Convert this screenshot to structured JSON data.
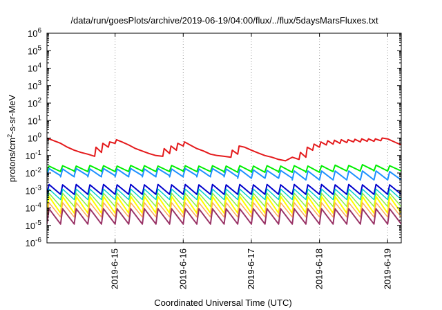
{
  "chart_data": {
    "type": "line",
    "title": "/data/run/goesPlots/archive/2019-06-19/04:00/flux/../flux/5daysMarsFluxes.txt",
    "xlabel": "Coordinated Universal Time (UTC)",
    "ylabel_parts": {
      "base": "protons/cm",
      "sup": "2",
      "rest": "-s-sr-MeV"
    },
    "xlim": [
      14.0,
      19.2
    ],
    "x_ticks": [
      {
        "value": 15,
        "label": "2019-6-15"
      },
      {
        "value": 16,
        "label": "2019-6-16"
      },
      {
        "value": 17,
        "label": "2019-6-17"
      },
      {
        "value": 18,
        "label": "2019-6-18"
      },
      {
        "value": 19,
        "label": "2019-6-19"
      }
    ],
    "y_scale": "log",
    "ylim_exp": [
      -6,
      6
    ],
    "y_ticks": [
      {
        "base": "10",
        "exp": "-6"
      },
      {
        "base": "10",
        "exp": "-5"
      },
      {
        "base": "10",
        "exp": "-4"
      },
      {
        "base": "10",
        "exp": "-3"
      },
      {
        "base": "10",
        "exp": "-2"
      },
      {
        "base": "10",
        "exp": "-1"
      },
      {
        "base": "10",
        "exp": "0"
      },
      {
        "base": "10",
        "exp": "1"
      },
      {
        "base": "10",
        "exp": "2"
      },
      {
        "base": "10",
        "exp": "3"
      },
      {
        "base": "10",
        "exp": "4"
      },
      {
        "base": "10",
        "exp": "5"
      },
      {
        "base": "10",
        "exp": "6"
      }
    ],
    "grid": "vertical dotted",
    "series": [
      {
        "color": "#e41a1c",
        "width": 2,
        "x": [
          14.0,
          14.2,
          14.3,
          14.4,
          14.5,
          14.6,
          14.7,
          14.72,
          14.8,
          14.82,
          14.9,
          14.92,
          15.0,
          15.02,
          15.1,
          15.2,
          15.3,
          15.4,
          15.5,
          15.6,
          15.7,
          15.72,
          15.8,
          15.82,
          15.9,
          15.92,
          16.0,
          16.02,
          16.1,
          16.2,
          16.3,
          16.4,
          16.5,
          16.6,
          16.7,
          16.72,
          16.8,
          16.82,
          16.9,
          17.0,
          17.1,
          17.2,
          17.3,
          17.4,
          17.5,
          17.6,
          17.7,
          17.72,
          17.8,
          17.82,
          17.9,
          17.92,
          18.0,
          18.02,
          18.1,
          18.12,
          18.2,
          18.22,
          18.3,
          18.32,
          18.4,
          18.42,
          18.5,
          18.52,
          18.6,
          18.62,
          18.7,
          18.72,
          18.8,
          18.82,
          18.9,
          18.92,
          19.0,
          19.1,
          19.2
        ],
        "y": [
          1.0,
          0.5,
          0.3,
          0.2,
          0.15,
          0.12,
          0.09,
          0.3,
          0.15,
          0.5,
          0.3,
          0.6,
          0.5,
          0.8,
          0.6,
          0.4,
          0.25,
          0.18,
          0.13,
          0.1,
          0.09,
          0.25,
          0.13,
          0.35,
          0.2,
          0.5,
          0.35,
          0.6,
          0.4,
          0.25,
          0.18,
          0.12,
          0.1,
          0.09,
          0.08,
          0.2,
          0.12,
          0.35,
          0.3,
          0.2,
          0.14,
          0.1,
          0.08,
          0.06,
          0.05,
          0.08,
          0.06,
          0.15,
          0.08,
          0.3,
          0.2,
          0.45,
          0.3,
          0.6,
          0.4,
          0.7,
          0.45,
          0.75,
          0.5,
          0.8,
          0.55,
          0.8,
          0.6,
          0.85,
          0.6,
          0.9,
          0.65,
          0.9,
          0.65,
          0.9,
          0.7,
          1.0,
          0.9,
          0.6,
          0.4
        ]
      },
      {
        "color": "#00ee00",
        "width": 2,
        "period": 0.2,
        "peaks": [
          0.025,
          0.026,
          0.025,
          0.027,
          0.026,
          0.025,
          0.027,
          0.026,
          0.025,
          0.027,
          0.026,
          0.025,
          0.026,
          0.025,
          0.026,
          0.025,
          0.026,
          0.025,
          0.026,
          0.025,
          0.026,
          0.028,
          0.027,
          0.03,
          0.028,
          0.026
        ],
        "troughs": [
          0.012,
          0.013,
          0.012,
          0.013,
          0.012,
          0.012,
          0.013,
          0.012,
          0.012,
          0.013,
          0.012,
          0.012,
          0.012,
          0.011,
          0.012,
          0.011,
          0.012,
          0.011,
          0.012,
          0.011,
          0.012,
          0.013,
          0.013,
          0.014,
          0.013,
          0.013
        ]
      },
      {
        "color": "#1e90ff",
        "width": 2,
        "period": 0.2,
        "peaks": [
          0.018,
          0.017,
          0.018,
          0.017,
          0.018,
          0.017,
          0.018,
          0.017,
          0.018,
          0.017,
          0.018,
          0.017,
          0.018,
          0.017,
          0.016,
          0.015,
          0.014,
          0.014,
          0.013,
          0.013,
          0.013,
          0.013,
          0.013,
          0.013,
          0.013,
          0.012
        ],
        "troughs": [
          0.007,
          0.006,
          0.007,
          0.006,
          0.007,
          0.006,
          0.007,
          0.006,
          0.007,
          0.006,
          0.007,
          0.006,
          0.007,
          0.006,
          0.005,
          0.005,
          0.005,
          0.005,
          0.004,
          0.004,
          0.004,
          0.004,
          0.004,
          0.004,
          0.004,
          0.004
        ]
      },
      {
        "color": "#0000cc",
        "width": 2,
        "period": 0.2,
        "peaks": [
          0.0022,
          0.0021,
          0.0022,
          0.0021,
          0.0022,
          0.0021,
          0.0022,
          0.0021,
          0.0022,
          0.0021,
          0.0022,
          0.0021,
          0.0022,
          0.0021,
          0.0022,
          0.0021,
          0.0022,
          0.0021,
          0.0022,
          0.0021,
          0.0022,
          0.0021,
          0.0022,
          0.0021,
          0.0022,
          0.0021
        ],
        "troughs": [
          0.0006,
          0.0006,
          0.0006,
          0.0006,
          0.0006,
          0.0006,
          0.0006,
          0.0006,
          0.0006,
          0.0006,
          0.0006,
          0.0006,
          0.0006,
          0.0006,
          0.0006,
          0.0006,
          0.0006,
          0.0006,
          0.0006,
          0.0006,
          0.0006,
          0.0006,
          0.0006,
          0.0006,
          0.0006,
          0.0006
        ]
      },
      {
        "color": "#00cccc",
        "width": 1.5,
        "period": 0.2,
        "peaks": [
          0.0012,
          0.0012,
          0.0012,
          0.0012,
          0.0012,
          0.0012,
          0.0012,
          0.0012,
          0.0012,
          0.0012,
          0.0012,
          0.0012,
          0.0012,
          0.0012,
          0.0012,
          0.0012,
          0.0012,
          0.0012,
          0.0012,
          0.0012,
          0.0012,
          0.0012,
          0.0012,
          0.0012,
          0.0012,
          0.0012
        ],
        "troughs": [
          0.0003,
          0.0003,
          0.0003,
          0.0003,
          0.0003,
          0.0003,
          0.0003,
          0.0003,
          0.0003,
          0.0003,
          0.0003,
          0.0003,
          0.0003,
          0.0003,
          0.0003,
          0.0003,
          0.0003,
          0.0003,
          0.0003,
          0.0003,
          0.0003,
          0.0003,
          0.0003,
          0.0003,
          0.0003,
          0.0003
        ]
      },
      {
        "color": "#88ee44",
        "width": 1.5,
        "period": 0.2,
        "peaks": [
          0.0007,
          0.0007,
          0.0007,
          0.0007,
          0.0007,
          0.0007,
          0.0007,
          0.0007,
          0.0007,
          0.0007,
          0.0007,
          0.0007,
          0.0007,
          0.0007,
          0.0007,
          0.0007,
          0.0007,
          0.0007,
          0.0007,
          0.0007,
          0.0007,
          0.0007,
          0.0007,
          0.0007,
          0.0007,
          0.0007
        ],
        "troughs": [
          0.00012,
          0.00012,
          0.00012,
          0.00012,
          0.00012,
          0.00012,
          0.00012,
          0.00012,
          0.00012,
          0.00012,
          0.00012,
          0.00012,
          0.00012,
          0.00012,
          0.00012,
          0.00012,
          0.00012,
          0.00012,
          0.00012,
          0.00012,
          0.00012,
          0.00012,
          0.00012,
          0.00012,
          0.00012,
          0.00012
        ]
      },
      {
        "color": "#ffff00",
        "width": 2,
        "period": 0.2,
        "peaks": [
          0.00045,
          0.00045,
          0.00045,
          0.00045,
          0.00045,
          0.00045,
          0.00045,
          0.00045,
          0.00045,
          0.00045,
          0.00045,
          0.00045,
          0.00045,
          0.00045,
          0.00045,
          0.00045,
          0.00045,
          0.00045,
          0.00045,
          0.00045,
          0.00045,
          0.00045,
          0.00045,
          0.00045,
          0.00045,
          0.00045
        ],
        "troughs": [
          5e-05,
          5e-05,
          5e-05,
          5e-05,
          5e-05,
          5e-05,
          5e-05,
          5e-05,
          5e-05,
          5e-05,
          5e-05,
          5e-05,
          5e-05,
          5e-05,
          5e-05,
          5e-05,
          5e-05,
          5e-05,
          5e-05,
          5e-05,
          5e-05,
          5e-05,
          5e-05,
          5e-05,
          5e-05,
          5e-05
        ]
      },
      {
        "color": "#ffaa55",
        "width": 1.5,
        "period": 0.2,
        "peaks": [
          0.0002,
          0.0002,
          0.0002,
          0.0002,
          0.0002,
          0.0002,
          0.0002,
          0.0002,
          0.0002,
          0.0002,
          0.0002,
          0.0002,
          0.0002,
          0.0002,
          0.0002,
          0.0002,
          0.0002,
          0.0002,
          0.0002,
          0.0002,
          0.0002,
          0.0002,
          0.0002,
          0.0002,
          0.0002,
          0.0002
        ],
        "troughs": [
          3e-05,
          3e-05,
          3e-05,
          3e-05,
          3e-05,
          3e-05,
          3e-05,
          3e-05,
          3e-05,
          3e-05,
          3e-05,
          3e-05,
          3e-05,
          3e-05,
          3e-05,
          3e-05,
          3e-05,
          3e-05,
          3e-05,
          3e-05,
          3e-05,
          3e-05,
          3e-05,
          3e-05,
          3e-05,
          3e-05
        ]
      },
      {
        "color": "#993366",
        "width": 2,
        "period": 0.2,
        "peaks": [
          9e-05,
          9e-05,
          9e-05,
          9e-05,
          9e-05,
          9e-05,
          9e-05,
          9e-05,
          9e-05,
          9e-05,
          9e-05,
          9e-05,
          9e-05,
          9e-05,
          9e-05,
          9e-05,
          9e-05,
          9e-05,
          9e-05,
          9e-05,
          9e-05,
          9e-05,
          9e-05,
          9e-05,
          9e-05,
          9e-05
        ],
        "troughs": [
          1.2e-05,
          1.2e-05,
          1.2e-05,
          1.2e-05,
          1.2e-05,
          1.2e-05,
          1.2e-05,
          1.2e-05,
          1.2e-05,
          1.2e-05,
          1.2e-05,
          1.2e-05,
          1.2e-05,
          1.2e-05,
          1.2e-05,
          1.2e-05,
          1.2e-05,
          1.2e-05,
          1.2e-05,
          1.2e-05,
          1.2e-05,
          1.2e-05,
          1.2e-05,
          1.2e-05,
          1.2e-05,
          1.2e-05
        ]
      }
    ]
  }
}
